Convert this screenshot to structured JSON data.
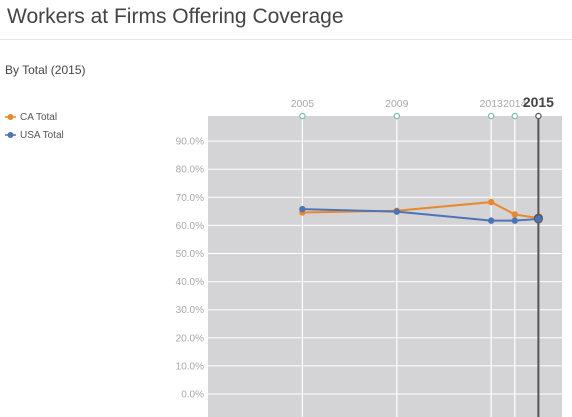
{
  "page": {
    "title": "Workers at Firms Offering Coverage",
    "subtitle": "By Total (2015)"
  },
  "chart_data": {
    "type": "line",
    "x": [
      2005,
      2009,
      2013,
      2014,
      2015
    ],
    "x_labels": [
      "2005",
      "2009",
      "2013",
      "2014",
      "2015"
    ],
    "selected_x": 2015,
    "series": [
      {
        "name": "CA Total",
        "color": "#e8892e",
        "values": [
          64.6,
          65.2,
          68.3,
          63.9,
          62.6
        ]
      },
      {
        "name": "USA Total",
        "color": "#4d74b5",
        "values": [
          65.8,
          64.9,
          61.7,
          61.7,
          62.3
        ]
      }
    ],
    "ylim": [
      0,
      95
    ],
    "y_ticks": [
      0,
      10,
      20,
      30,
      40,
      50,
      60,
      70,
      80,
      90
    ],
    "y_tick_labels": [
      "0.0%",
      "10.0%",
      "20.0%",
      "30.0%",
      "40.0%",
      "50.0%",
      "60.0%",
      "70.0%",
      "80.0%",
      "90.0%"
    ],
    "grid": true,
    "legend_position": "left",
    "plot_background": "#d4d4d6",
    "xlabel": "",
    "ylabel": ""
  }
}
